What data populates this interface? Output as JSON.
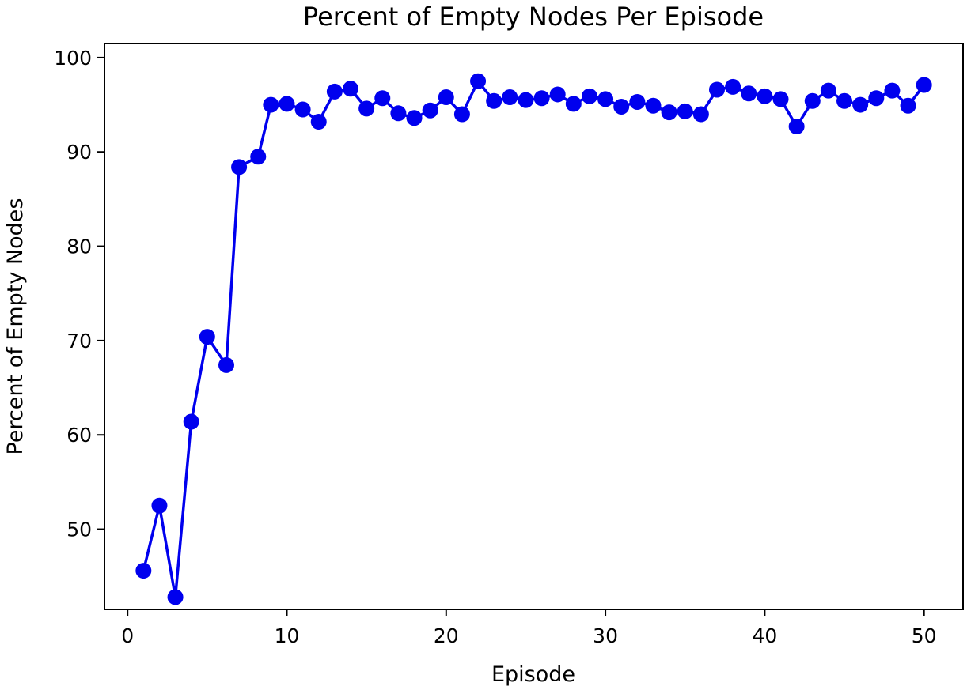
{
  "chart_data": {
    "type": "line",
    "title": "Percent of Empty Nodes Per Episode",
    "xlabel": "Episode",
    "ylabel": "Percent of Empty Nodes",
    "xlim": [
      -1.45,
      52.45
    ],
    "ylim": [
      41.5,
      101.5
    ],
    "xticks": [
      0,
      10,
      20,
      30,
      40,
      50
    ],
    "yticks": [
      50,
      60,
      70,
      80,
      90,
      100
    ],
    "grid": false,
    "marker": "circle",
    "series": [
      {
        "color": "#0000ee",
        "x": [
          1,
          2,
          3,
          4,
          5,
          6.2,
          7,
          8.2,
          9,
          10,
          11,
          12,
          13,
          14,
          15,
          16,
          17,
          18,
          19,
          20,
          21,
          22,
          23,
          24,
          25,
          26,
          27,
          28,
          29,
          30,
          31,
          32,
          33,
          34,
          35,
          36,
          37,
          38,
          39,
          40,
          41,
          42,
          43,
          44,
          45,
          46,
          47,
          48,
          49,
          50
        ],
        "y": [
          45.6,
          52.5,
          42.8,
          61.4,
          70.4,
          67.4,
          88.4,
          89.5,
          95.0,
          95.1,
          94.5,
          93.2,
          96.4,
          96.7,
          94.6,
          95.7,
          94.1,
          93.6,
          94.4,
          95.8,
          94.0,
          97.5,
          95.4,
          95.8,
          95.5,
          95.7,
          96.1,
          95.1,
          95.9,
          95.6,
          94.8,
          95.3,
          94.9,
          94.2,
          94.3,
          94.0,
          96.6,
          96.9,
          96.2,
          95.9,
          95.6,
          92.7,
          95.4,
          96.5,
          95.4,
          95.0,
          95.7,
          96.5,
          94.9,
          97.1
        ]
      }
    ]
  }
}
